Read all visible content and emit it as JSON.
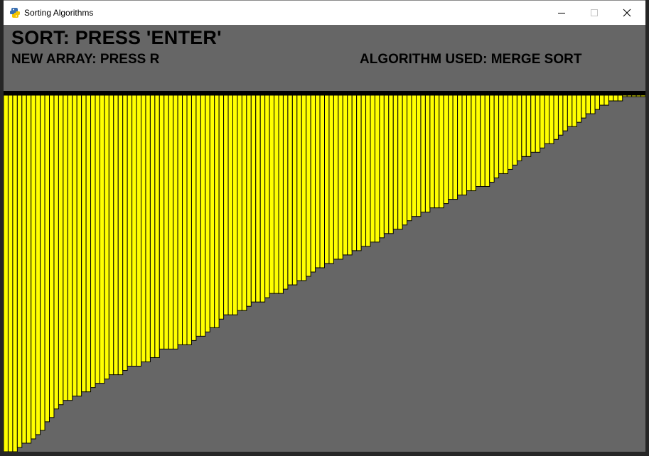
{
  "window": {
    "title": "Sorting Algorithms",
    "icon": "python-snake-icon",
    "controls": [
      "minimize-icon",
      "maximize-icon",
      "close-icon"
    ]
  },
  "header": {
    "sort_instruction": "SORT: PRESS 'ENTER'",
    "new_array_instruction": "NEW ARRAY: PRESS R",
    "algorithm_used": "ALGORITHM USED: MERGE SORT"
  },
  "colors": {
    "background": "#666666",
    "bar_fill": "#ffff00",
    "bar_outline": "#000000",
    "divider": "#000000"
  },
  "array": {
    "max_value": 500,
    "values": [
      500,
      500,
      500,
      494,
      488,
      488,
      482,
      476,
      470,
      458,
      452,
      440,
      434,
      428,
      428,
      422,
      422,
      416,
      416,
      410,
      404,
      404,
      398,
      392,
      392,
      392,
      386,
      380,
      380,
      380,
      374,
      374,
      368,
      368,
      356,
      356,
      356,
      356,
      350,
      350,
      350,
      344,
      338,
      338,
      332,
      326,
      326,
      314,
      308,
      308,
      308,
      302,
      302,
      296,
      290,
      290,
      290,
      284,
      278,
      278,
      278,
      272,
      266,
      266,
      260,
      260,
      254,
      248,
      242,
      242,
      236,
      236,
      230,
      230,
      224,
      224,
      218,
      218,
      212,
      212,
      206,
      206,
      200,
      194,
      194,
      188,
      188,
      182,
      176,
      170,
      170,
      164,
      164,
      158,
      158,
      158,
      152,
      146,
      146,
      140,
      140,
      134,
      134,
      128,
      128,
      128,
      122,
      116,
      110,
      110,
      104,
      98,
      92,
      86,
      86,
      80,
      80,
      74,
      68,
      68,
      62,
      56,
      50,
      44,
      44,
      38,
      32,
      26,
      26,
      20,
      14,
      14,
      8,
      8,
      8,
      2,
      2,
      2,
      2,
      2
    ]
  }
}
